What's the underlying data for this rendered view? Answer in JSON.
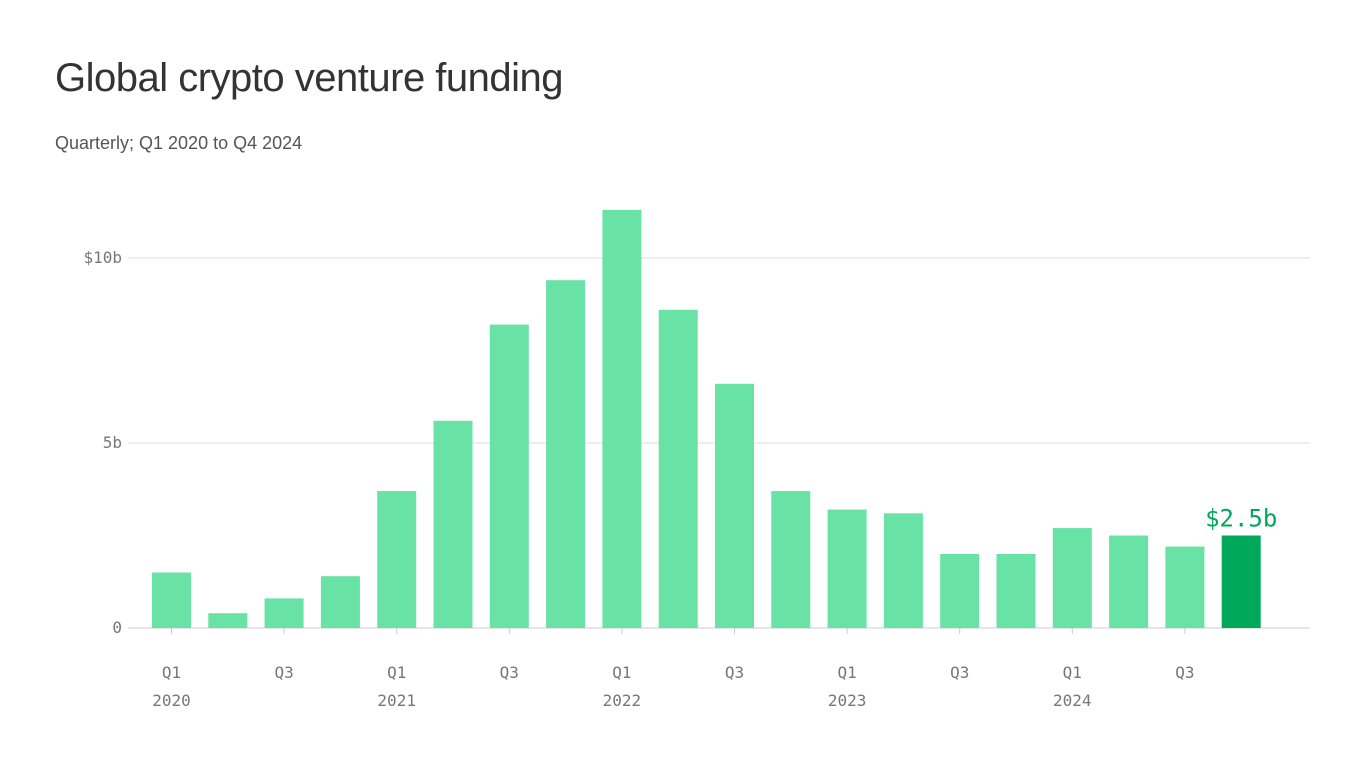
{
  "chart_data": {
    "type": "bar",
    "title": "Global crypto venture funding",
    "subtitle": "Quarterly; Q1 2020 to Q4 2024",
    "categories": [
      "Q1 2020",
      "Q2 2020",
      "Q3 2020",
      "Q4 2020",
      "Q1 2021",
      "Q2 2021",
      "Q3 2021",
      "Q4 2021",
      "Q1 2022",
      "Q2 2022",
      "Q3 2022",
      "Q4 2022",
      "Q1 2023",
      "Q2 2023",
      "Q3 2023",
      "Q4 2023",
      "Q1 2024",
      "Q2 2024",
      "Q3 2024",
      "Q4 2024"
    ],
    "values": [
      1.5,
      0.4,
      0.8,
      1.4,
      3.7,
      5.6,
      8.2,
      9.4,
      11.3,
      8.6,
      6.6,
      3.7,
      3.2,
      3.1,
      2.0,
      2.0,
      2.7,
      2.5,
      2.2,
      2.5
    ],
    "unit": "billion USD",
    "ylim": [
      0,
      12
    ],
    "yticks": [
      {
        "value": 0,
        "label": "0"
      },
      {
        "value": 5,
        "label": "5b"
      },
      {
        "value": 10,
        "label": "$10b"
      }
    ],
    "xticks": [
      {
        "index": 0,
        "q": "Q1",
        "year": "2020"
      },
      {
        "index": 2,
        "q": "Q3",
        "year": ""
      },
      {
        "index": 4,
        "q": "Q1",
        "year": "2021"
      },
      {
        "index": 6,
        "q": "Q3",
        "year": ""
      },
      {
        "index": 8,
        "q": "Q1",
        "year": "2022"
      },
      {
        "index": 10,
        "q": "Q3",
        "year": ""
      },
      {
        "index": 12,
        "q": "Q1",
        "year": "2023"
      },
      {
        "index": 14,
        "q": "Q3",
        "year": ""
      },
      {
        "index": 16,
        "q": "Q1",
        "year": "2024"
      },
      {
        "index": 18,
        "q": "Q3",
        "year": ""
      }
    ],
    "grid": true,
    "annotation": {
      "index": 19,
      "label": "$2.5b"
    },
    "colors": {
      "bar": "#68e2a5",
      "highlight": "#00a85a",
      "grid": "#dddddd",
      "axis": "#cccccc"
    }
  }
}
